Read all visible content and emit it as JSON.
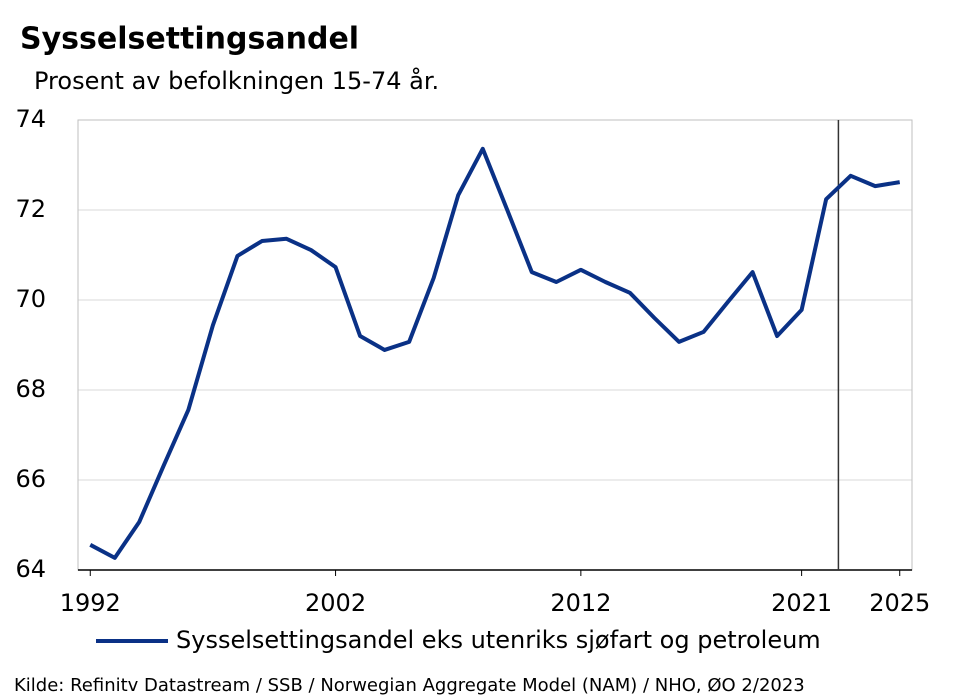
{
  "chart_data": {
    "type": "line",
    "title": "Sysselsettingsandel",
    "subtitle": "Prosent av befolkningen 15-74 år.",
    "x": [
      1992,
      1993,
      1994,
      1995,
      1996,
      1997,
      1998,
      1999,
      2000,
      2001,
      2002,
      2003,
      2004,
      2005,
      2006,
      2007,
      2008,
      2009,
      2010,
      2011,
      2012,
      2013,
      2014,
      2015,
      2016,
      2017,
      2018,
      2019,
      2020,
      2021,
      2022,
      2023,
      2024,
      2025
    ],
    "series": [
      {
        "name": "Sysselsettingsandel eks utenriks sjøfart og petroleum",
        "color": "#0a3186",
        "values": [
          64.56,
          64.27,
          65.07,
          66.33,
          67.56,
          69.44,
          70.98,
          71.31,
          71.36,
          71.11,
          70.73,
          69.2,
          68.89,
          69.07,
          70.49,
          72.33,
          73.36,
          72.0,
          70.62,
          70.4,
          70.67,
          70.4,
          70.16,
          69.6,
          69.07,
          69.29,
          69.96,
          70.62,
          69.2,
          69.78,
          72.24,
          72.76,
          72.53,
          72.62
        ]
      }
    ],
    "xlim": [
      1991.5,
      2025.5
    ],
    "xticks": [
      1992,
      2002,
      2012,
      2021,
      2025
    ],
    "ylim": [
      64,
      74
    ],
    "yticks": [
      64,
      66,
      68,
      70,
      72,
      74
    ],
    "vline": 2022.5,
    "grid": true,
    "legend": "bottom",
    "source": "Kilde: Refinitv Datastream  / SSB / Norwegian Aggregate Model (NAM) / NHO, ØO 2/2023"
  }
}
